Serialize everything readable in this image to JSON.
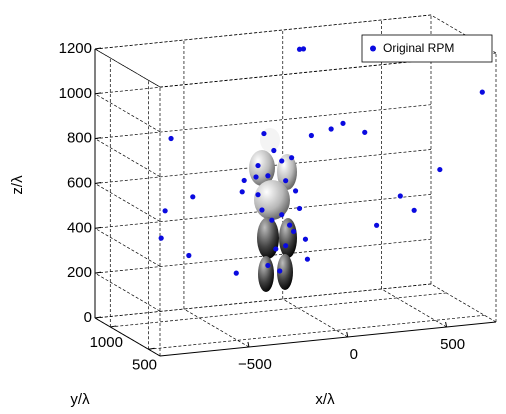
{
  "chart_data": {
    "type": "scatter3d",
    "xlabel": "x/λ",
    "ylabel": "y/λ",
    "zlabel": "z/λ",
    "xlim": [
      -950,
      750
    ],
    "ylim": [
      350,
      1200
    ],
    "zlim": [
      0,
      1200
    ],
    "xticks": [
      {
        "value": -500,
        "label": "−500"
      },
      0,
      500
    ],
    "yticks": [
      500,
      1000
    ],
    "zticks": [
      0,
      200,
      400,
      600,
      800,
      1000,
      1200
    ],
    "grid": true,
    "legend": "upper right",
    "series": [
      {
        "name": "Original RPM",
        "color": "#0a0ae0",
        "x": [
          -70,
          -50,
          700,
          -720,
          150,
          90,
          260,
          -10,
          -250,
          640,
          -610,
          -750,
          -770,
          -630,
          -390,
          320,
          440,
          510,
          -30,
          -40,
          -350,
          -360,
          -290,
          -230,
          -160,
          -110,
          -140,
          -90,
          -280,
          -260,
          -210,
          -160,
          -120,
          -100,
          -140,
          -190,
          -230,
          -170,
          -70,
          -280,
          -200
        ],
        "y": [
          800,
          800,
          400,
          800,
          800,
          800,
          800,
          800,
          800,
          800,
          800,
          800,
          800,
          800,
          800,
          800,
          800,
          800,
          800,
          800,
          800,
          800,
          800,
          800,
          800,
          800,
          800,
          800,
          800,
          800,
          800,
          800,
          800,
          800,
          800,
          800,
          800,
          800,
          800,
          800,
          800
        ],
        "z": [
          1200,
          1200,
          1020,
          860,
          850,
          830,
          800,
          810,
          840,
          600,
          590,
          540,
          420,
          330,
          230,
          380,
          500,
          430,
          260,
          350,
          640,
          590,
          650,
          650,
          710,
          720,
          620,
          570,
          570,
          500,
          450,
          470,
          420,
          390,
          330,
          320,
          250,
          220,
          490,
          700,
          760
        ]
      }
    ]
  }
}
